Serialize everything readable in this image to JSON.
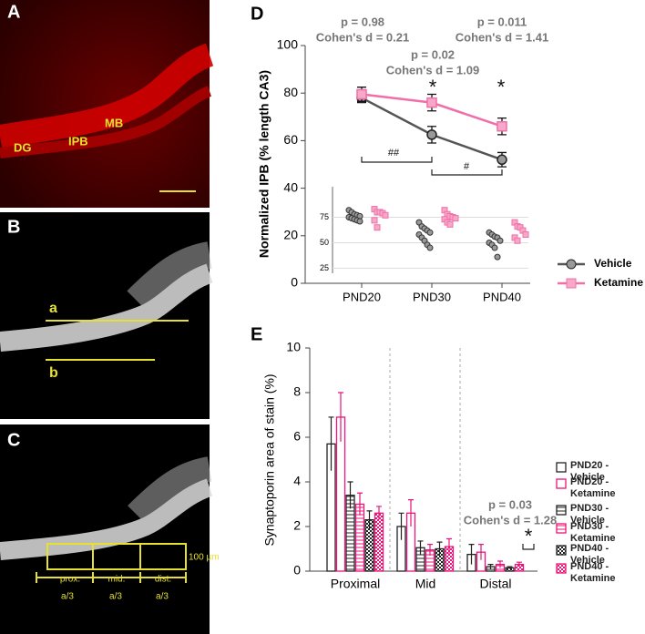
{
  "panels": {
    "A": {
      "label": "A",
      "regions": [
        "DG",
        "IPB",
        "MB"
      ]
    },
    "B": {
      "label": "B",
      "lines": [
        "a",
        "b"
      ]
    },
    "C": {
      "label": "C",
      "segments": [
        "prox.",
        "mid.",
        "dist."
      ],
      "fractions": [
        "a/3",
        "a/3",
        "a/3"
      ],
      "scale": "100 µm"
    }
  },
  "chart_data": [
    {
      "type": "line",
      "panel": "D",
      "ylabel": "Normalized  IPB (% length CA3)",
      "categories": [
        "PND20",
        "PND30",
        "PND40"
      ],
      "ylim": [
        0,
        100
      ],
      "yticks": [
        0,
        20,
        40,
        60,
        80,
        100
      ],
      "legend": "right",
      "series": [
        {
          "name": "Vehicle",
          "color": "#555555",
          "values": [
            78,
            62.5,
            52
          ],
          "errors": [
            2,
            3.5,
            3
          ]
        },
        {
          "name": "Ketamine",
          "color": "#f06fa8",
          "values": [
            79.5,
            76,
            66
          ],
          "errors": [
            3,
            3.5,
            3.5
          ]
        }
      ],
      "annotations": [
        "p = 0.98",
        "Cohen's d = 0.21",
        "p = 0.02",
        "Cohen's d = 1.09",
        "p = 0.011",
        "Cohen's d = 1.41",
        "*",
        "*",
        "##",
        "#"
      ],
      "inset": {
        "type": "scatter",
        "ylim": [
          20,
          105
        ],
        "yticks": [
          25,
          50,
          75
        ],
        "series": [
          {
            "values": [
              [
                82,
                80,
                78,
                77,
                76,
                75,
                74,
                73,
                72,
                71
              ],
              [
                70,
                66,
                64,
                62,
                60,
                58,
                55,
                52,
                48,
                45
              ],
              [
                60,
                58,
                56,
                55,
                52,
                50,
                48,
                45,
                36
              ]
            ]
          },
          {
            "values": [
              [
                83,
                80,
                80,
                79,
                77,
                72,
                65
              ],
              [
                82,
                78,
                76,
                75,
                74,
                73,
                70,
                68
              ],
              [
                70,
                66,
                65,
                62,
                58,
                55,
                52
              ]
            ]
          }
        ]
      }
    },
    {
      "type": "bar",
      "panel": "E",
      "ylabel": "Synaptoporin area of stain (%)",
      "categories": [
        "Proximal",
        "Mid",
        "Distal"
      ],
      "ylim": [
        0,
        10
      ],
      "yticks": [
        0,
        2,
        4,
        6,
        8,
        10
      ],
      "legend": "right",
      "series": [
        {
          "name": "PND20 - Vehicle",
          "color": "#222222",
          "values": [
            5.7,
            2.0,
            0.75
          ],
          "errors": [
            1.2,
            0.6,
            0.45
          ]
        },
        {
          "name": "PND20 - Ketamine",
          "color": "#e8157a",
          "values": [
            6.9,
            2.6,
            0.85
          ],
          "errors": [
            1.1,
            0.6,
            0.35
          ]
        },
        {
          "name": "PND30 - Vehicle",
          "color": "#222222",
          "values": [
            3.4,
            1.05,
            0.2
          ],
          "errors": [
            0.6,
            0.3,
            0.1
          ]
        },
        {
          "name": "PND30 - Ketamine",
          "color": "#e8157a",
          "values": [
            3.0,
            0.95,
            0.3
          ],
          "errors": [
            0.5,
            0.25,
            0.15
          ]
        },
        {
          "name": "PND40 - Vehicle",
          "color": "#222222",
          "values": [
            2.3,
            1.0,
            0.15
          ],
          "errors": [
            0.4,
            0.3,
            0.05
          ]
        },
        {
          "name": "PND40 - Ketamine",
          "color": "#e8157a",
          "values": [
            2.6,
            1.1,
            0.3
          ],
          "errors": [
            0.3,
            0.35,
            0.1
          ]
        }
      ],
      "annotations": [
        "p = 0.03",
        "Cohen's d = 1.28",
        "*"
      ]
    }
  ]
}
